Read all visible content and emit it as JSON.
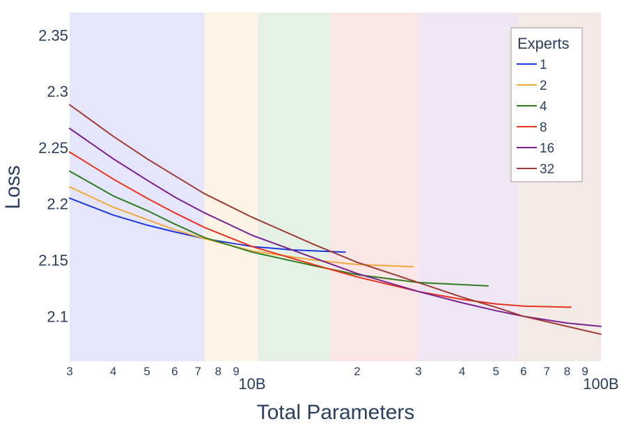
{
  "chart_data": {
    "type": "line",
    "xlabel": "Total Parameters",
    "ylabel": "Loss",
    "x_scale": "log",
    "xlim": [
      3000000000,
      100000000000
    ],
    "ylim": [
      2.06,
      2.37
    ],
    "x_ticks": [
      {
        "value": 3000000000,
        "label": "3"
      },
      {
        "value": 4000000000,
        "label": "4"
      },
      {
        "value": 5000000000,
        "label": "5"
      },
      {
        "value": 6000000000,
        "label": "6"
      },
      {
        "value": 7000000000,
        "label": "7"
      },
      {
        "value": 8000000000,
        "label": "8"
      },
      {
        "value": 9000000000,
        "label": "9"
      },
      {
        "value": 20000000000,
        "label": "2"
      },
      {
        "value": 30000000000,
        "label": "3"
      },
      {
        "value": 40000000000,
        "label": "4"
      },
      {
        "value": 50000000000,
        "label": "5"
      },
      {
        "value": 60000000000,
        "label": "6"
      },
      {
        "value": 70000000000,
        "label": "7"
      },
      {
        "value": 80000000000,
        "label": "8"
      },
      {
        "value": 90000000000,
        "label": "9"
      }
    ],
    "x_major_ticks": [
      {
        "value": 10000000000,
        "label": "10B"
      },
      {
        "value": 100000000000,
        "label": "100B"
      }
    ],
    "y_ticks": [
      {
        "value": 2.1,
        "label": "2.1"
      },
      {
        "value": 2.15,
        "label": "2.15"
      },
      {
        "value": 2.2,
        "label": "2.2"
      },
      {
        "value": 2.25,
        "label": "2.25"
      },
      {
        "value": 2.3,
        "label": "2.3"
      },
      {
        "value": 2.35,
        "label": "2.35"
      }
    ],
    "grid": false,
    "legend": {
      "title": "Experts",
      "position": "top-right"
    },
    "background_bands": [
      {
        "x0": 3000000000,
        "x1": 7300000000,
        "color": "#e5e5fb"
      },
      {
        "x0": 7300000000,
        "x1": 10400000000,
        "color": "#fdf4e6"
      },
      {
        "x0": 10400000000,
        "x1": 16700000000,
        "color": "#e6f1e6"
      },
      {
        "x0": 16700000000,
        "x1": 29800000000,
        "color": "#fbe6e6"
      },
      {
        "x0": 29800000000,
        "x1": 57700000000,
        "color": "#efe6f3"
      },
      {
        "x0": 57700000000,
        "x1": 100000000000,
        "color": "#f3e9e6"
      }
    ],
    "series": [
      {
        "name": "1",
        "color": "#1a36e0",
        "x": [
          3000000000,
          4000000000,
          5000000000,
          6000000000,
          7300000000,
          10000000000,
          13000000000,
          18500000000
        ],
        "y": [
          2.205,
          2.19,
          2.181,
          2.175,
          2.169,
          2.162,
          2.159,
          2.157
        ]
      },
      {
        "name": "2",
        "color": "#f2a83a",
        "x": [
          3000000000,
          4000000000,
          5000000000,
          6000000000,
          7300000000,
          10000000000,
          15000000000,
          20000000000,
          29000000000
        ],
        "y": [
          2.215,
          2.197,
          2.186,
          2.177,
          2.169,
          2.158,
          2.15,
          2.146,
          2.144
        ]
      },
      {
        "name": "4",
        "color": "#2e7d1e",
        "x": [
          3000000000,
          4000000000,
          5000000000,
          6000000000,
          7300000000,
          10000000000,
          15000000000,
          20000000000,
          30000000000,
          47500000000
        ],
        "y": [
          2.229,
          2.207,
          2.194,
          2.182,
          2.17,
          2.157,
          2.145,
          2.137,
          2.13,
          2.127
        ]
      },
      {
        "name": "8",
        "color": "#e8321c",
        "x": [
          3000000000,
          4000000000,
          5000000000,
          6000000000,
          7300000000,
          10000000000,
          15000000000,
          20000000000,
          30000000000,
          40000000000,
          50000000000,
          60000000000,
          82000000000
        ],
        "y": [
          2.246,
          2.222,
          2.205,
          2.192,
          2.179,
          2.162,
          2.146,
          2.135,
          2.122,
          2.115,
          2.111,
          2.109,
          2.108
        ]
      },
      {
        "name": "16",
        "color": "#7a1f8e",
        "x": [
          3000000000,
          4000000000,
          5000000000,
          6000000000,
          7300000000,
          10000000000,
          15000000000,
          20000000000,
          30000000000,
          40000000000,
          50000000000,
          60000000000,
          80000000000,
          100000000000
        ],
        "y": [
          2.267,
          2.24,
          2.221,
          2.206,
          2.192,
          2.172,
          2.152,
          2.138,
          2.122,
          2.112,
          2.105,
          2.1,
          2.094,
          2.091
        ]
      },
      {
        "name": "32",
        "color": "#9e3a32",
        "x": [
          3000000000,
          4000000000,
          5000000000,
          6000000000,
          7300000000,
          10000000000,
          15000000000,
          20000000000,
          30000000000,
          40000000000,
          50000000000,
          60000000000,
          80000000000,
          100000000000
        ],
        "y": [
          2.288,
          2.26,
          2.24,
          2.225,
          2.209,
          2.188,
          2.164,
          2.148,
          2.13,
          2.117,
          2.108,
          2.1,
          2.091,
          2.084
        ]
      }
    ]
  }
}
